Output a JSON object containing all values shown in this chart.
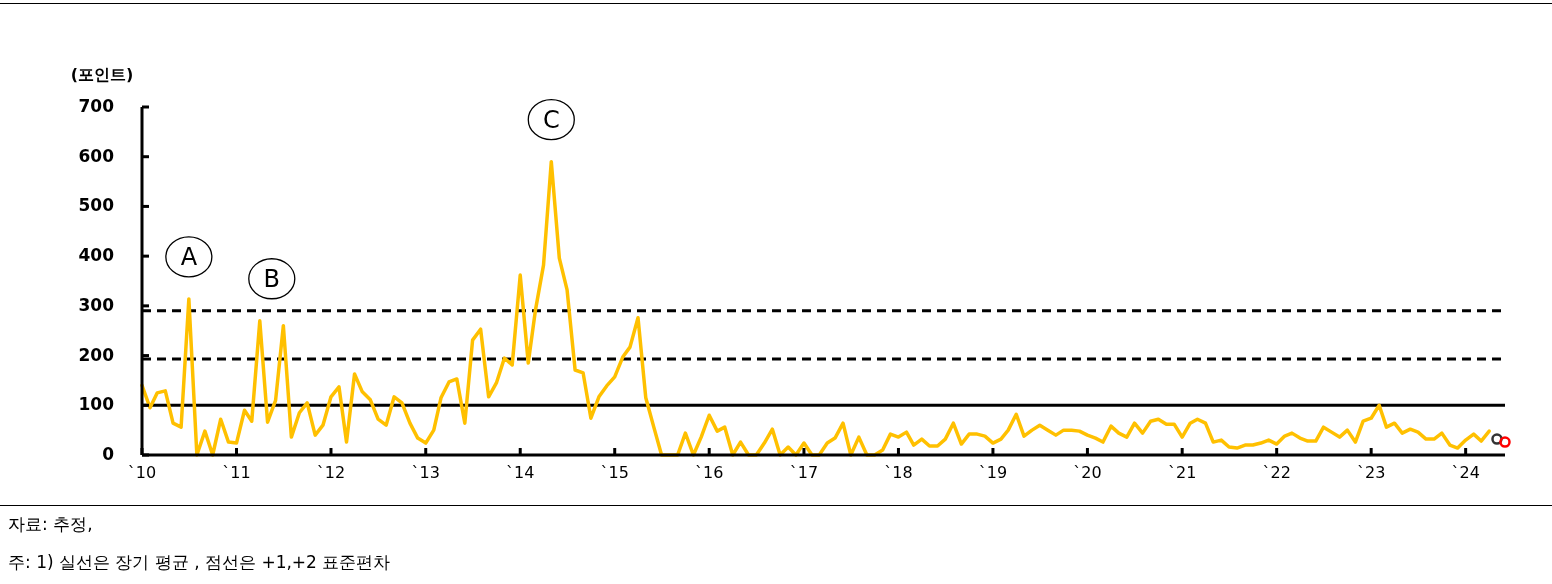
{
  "chart_data": {
    "type": "line",
    "ylabel": "(포인트)",
    "x": [
      "2010-01",
      "2010-02",
      "2010-03",
      "2010-04",
      "2010-05",
      "2010-06",
      "2010-07",
      "2010-08",
      "2010-09",
      "2010-10",
      "2010-11",
      "2010-12",
      "2011-01",
      "2011-02",
      "2011-03",
      "2011-04",
      "2011-05",
      "2011-06",
      "2011-07",
      "2011-08",
      "2011-09",
      "2011-10",
      "2011-11",
      "2011-12",
      "2012-01",
      "2012-02",
      "2012-03",
      "2012-04",
      "2012-05",
      "2012-06",
      "2012-07",
      "2012-08",
      "2012-09",
      "2012-10",
      "2012-11",
      "2012-12",
      "2013-01",
      "2013-02",
      "2013-03",
      "2013-04",
      "2013-05",
      "2013-06",
      "2013-07",
      "2013-08",
      "2013-09",
      "2013-10",
      "2013-11",
      "2013-12",
      "2014-01",
      "2014-02",
      "2014-03",
      "2014-04",
      "2014-05",
      "2014-06",
      "2014-07",
      "2014-08",
      "2014-09",
      "2014-10",
      "2014-11",
      "2014-12",
      "2015-01",
      "2015-02",
      "2015-03",
      "2015-04",
      "2015-05",
      "2015-06",
      "2015-07",
      "2015-08",
      "2015-09",
      "2015-10",
      "2015-11",
      "2015-12",
      "2016-01",
      "2016-02",
      "2016-03",
      "2016-04",
      "2016-05",
      "2016-06",
      "2016-07",
      "2016-08",
      "2016-09",
      "2016-10",
      "2016-11",
      "2016-12",
      "2017-01",
      "2017-02",
      "2017-03",
      "2017-04",
      "2017-05",
      "2017-06",
      "2017-07",
      "2017-08",
      "2017-09",
      "2017-10",
      "2017-11",
      "2017-12",
      "2018-01",
      "2018-02",
      "2018-03",
      "2018-04",
      "2018-05",
      "2018-06",
      "2018-07",
      "2018-08",
      "2018-09",
      "2018-10",
      "2018-11",
      "2018-12",
      "2019-01",
      "2019-02",
      "2019-03",
      "2019-04",
      "2019-05",
      "2019-06",
      "2019-07",
      "2019-08",
      "2019-09",
      "2019-10",
      "2019-11",
      "2019-12",
      "2020-01",
      "2020-02",
      "2020-03",
      "2020-04",
      "2020-05",
      "2020-06",
      "2020-07",
      "2020-08",
      "2020-09",
      "2020-10",
      "2020-11",
      "2020-12",
      "2021-01",
      "2021-02",
      "2021-03",
      "2021-04",
      "2021-05",
      "2021-06",
      "2021-07",
      "2021-08",
      "2021-09",
      "2021-10",
      "2021-11",
      "2021-12",
      "2022-01",
      "2022-02",
      "2022-03",
      "2022-04",
      "2022-05",
      "2022-06",
      "2022-07",
      "2022-08",
      "2022-09",
      "2022-10",
      "2022-11",
      "2022-12",
      "2023-01",
      "2023-02",
      "2023-03",
      "2023-04",
      "2023-05",
      "2023-06",
      "2023-07",
      "2023-08",
      "2023-09",
      "2023-10",
      "2023-11",
      "2023-12",
      "2024-01",
      "2024-02",
      "2024-03",
      "2024-04"
    ],
    "series": [
      {
        "type": "line",
        "color": "#ffc000",
        "marker": "none",
        "values": [
          140,
          95,
          125,
          129,
          64,
          56,
          314,
          0,
          48,
          0,
          72,
          26,
          24,
          90,
          68,
          270,
          66,
          110,
          260,
          36,
          85,
          105,
          40,
          60,
          117,
          137,
          26,
          163,
          127,
          111,
          72,
          60,
          117,
          105,
          64,
          34,
          24,
          50,
          115,
          147,
          153,
          64,
          231,
          253,
          117,
          145,
          195,
          181,
          362,
          185,
          292,
          382,
          590,
          396,
          332,
          171,
          165,
          74,
          117,
          139,
          157,
          197,
          217,
          276,
          115,
          56,
          0,
          0,
          0,
          44,
          0,
          36,
          80,
          48,
          56,
          0,
          26,
          0,
          0,
          24,
          52,
          0,
          16,
          0,
          24,
          0,
          0,
          24,
          34,
          64,
          0,
          36,
          0,
          0,
          10,
          42,
          36,
          46,
          20,
          32,
          18,
          18,
          32,
          64,
          22,
          42,
          42,
          38,
          24,
          32,
          50,
          82,
          38,
          50,
          60,
          50,
          40,
          50,
          50,
          48,
          40,
          34,
          26,
          58,
          44,
          36,
          64,
          44,
          68,
          72,
          62,
          62,
          36,
          64,
          72,
          64,
          26,
          30,
          16,
          14,
          20,
          20,
          24,
          30,
          22,
          38,
          44,
          34,
          28,
          28,
          56,
          46,
          36,
          50,
          26,
          68,
          74,
          100,
          56,
          64,
          44,
          52,
          46,
          32,
          32,
          44,
          20,
          14,
          30,
          42,
          28,
          48
        ]
      },
      {
        "type": "scatter",
        "color": "#333333",
        "marker": "circle",
        "x": [
          "2024-05"
        ],
        "values": [
          32
        ]
      },
      {
        "type": "scatter",
        "color": "#ff0000",
        "marker": "circle",
        "x": [
          "2024-06"
        ],
        "values": [
          26
        ]
      }
    ],
    "xlim": [
      "2010-01",
      "2024-06"
    ],
    "xticks": [
      {
        "value": "2010-01",
        "label": "`10"
      },
      {
        "value": "2011-01",
        "label": "`11"
      },
      {
        "value": "2012-01",
        "label": "`12"
      },
      {
        "value": "2013-01",
        "label": "`13"
      },
      {
        "value": "2014-01",
        "label": "`14"
      },
      {
        "value": "2015-01",
        "label": "`15"
      },
      {
        "value": "2016-01",
        "label": "`16"
      },
      {
        "value": "2017-01",
        "label": "`17"
      },
      {
        "value": "2018-01",
        "label": "`18"
      },
      {
        "value": "2019-01",
        "label": "`19"
      },
      {
        "value": "2020-01",
        "label": "`20"
      },
      {
        "value": "2021-01",
        "label": "`21"
      },
      {
        "value": "2022-01",
        "label": "`22"
      },
      {
        "value": "2023-01",
        "label": "`23"
      },
      {
        "value": "2024-01",
        "label": "`24"
      }
    ],
    "ylim": [
      0,
      700
    ],
    "yticks": [
      0,
      100,
      200,
      300,
      400,
      500,
      600,
      700
    ],
    "grid": false,
    "legend": false,
    "ref_lines": [
      {
        "axis": "y",
        "value": 100,
        "color": "#000000",
        "line_style": "solid"
      },
      {
        "axis": "y",
        "value": 193,
        "color": "#000000",
        "line_style": "dashed"
      },
      {
        "axis": "y",
        "value": 290,
        "color": "#000000",
        "line_style": "dashed"
      }
    ],
    "annotations": [
      {
        "text": "A",
        "x": "2010-07",
        "y": 314
      },
      {
        "text": "B",
        "x": "2011-04",
        "y": 270
      },
      {
        "text": "C",
        "x": "2014-05",
        "y": 590
      },
      "자료: 추정,",
      "주: 1) 실선은 장기 평균 , 점선은 +1,+2 표준편차"
    ]
  }
}
